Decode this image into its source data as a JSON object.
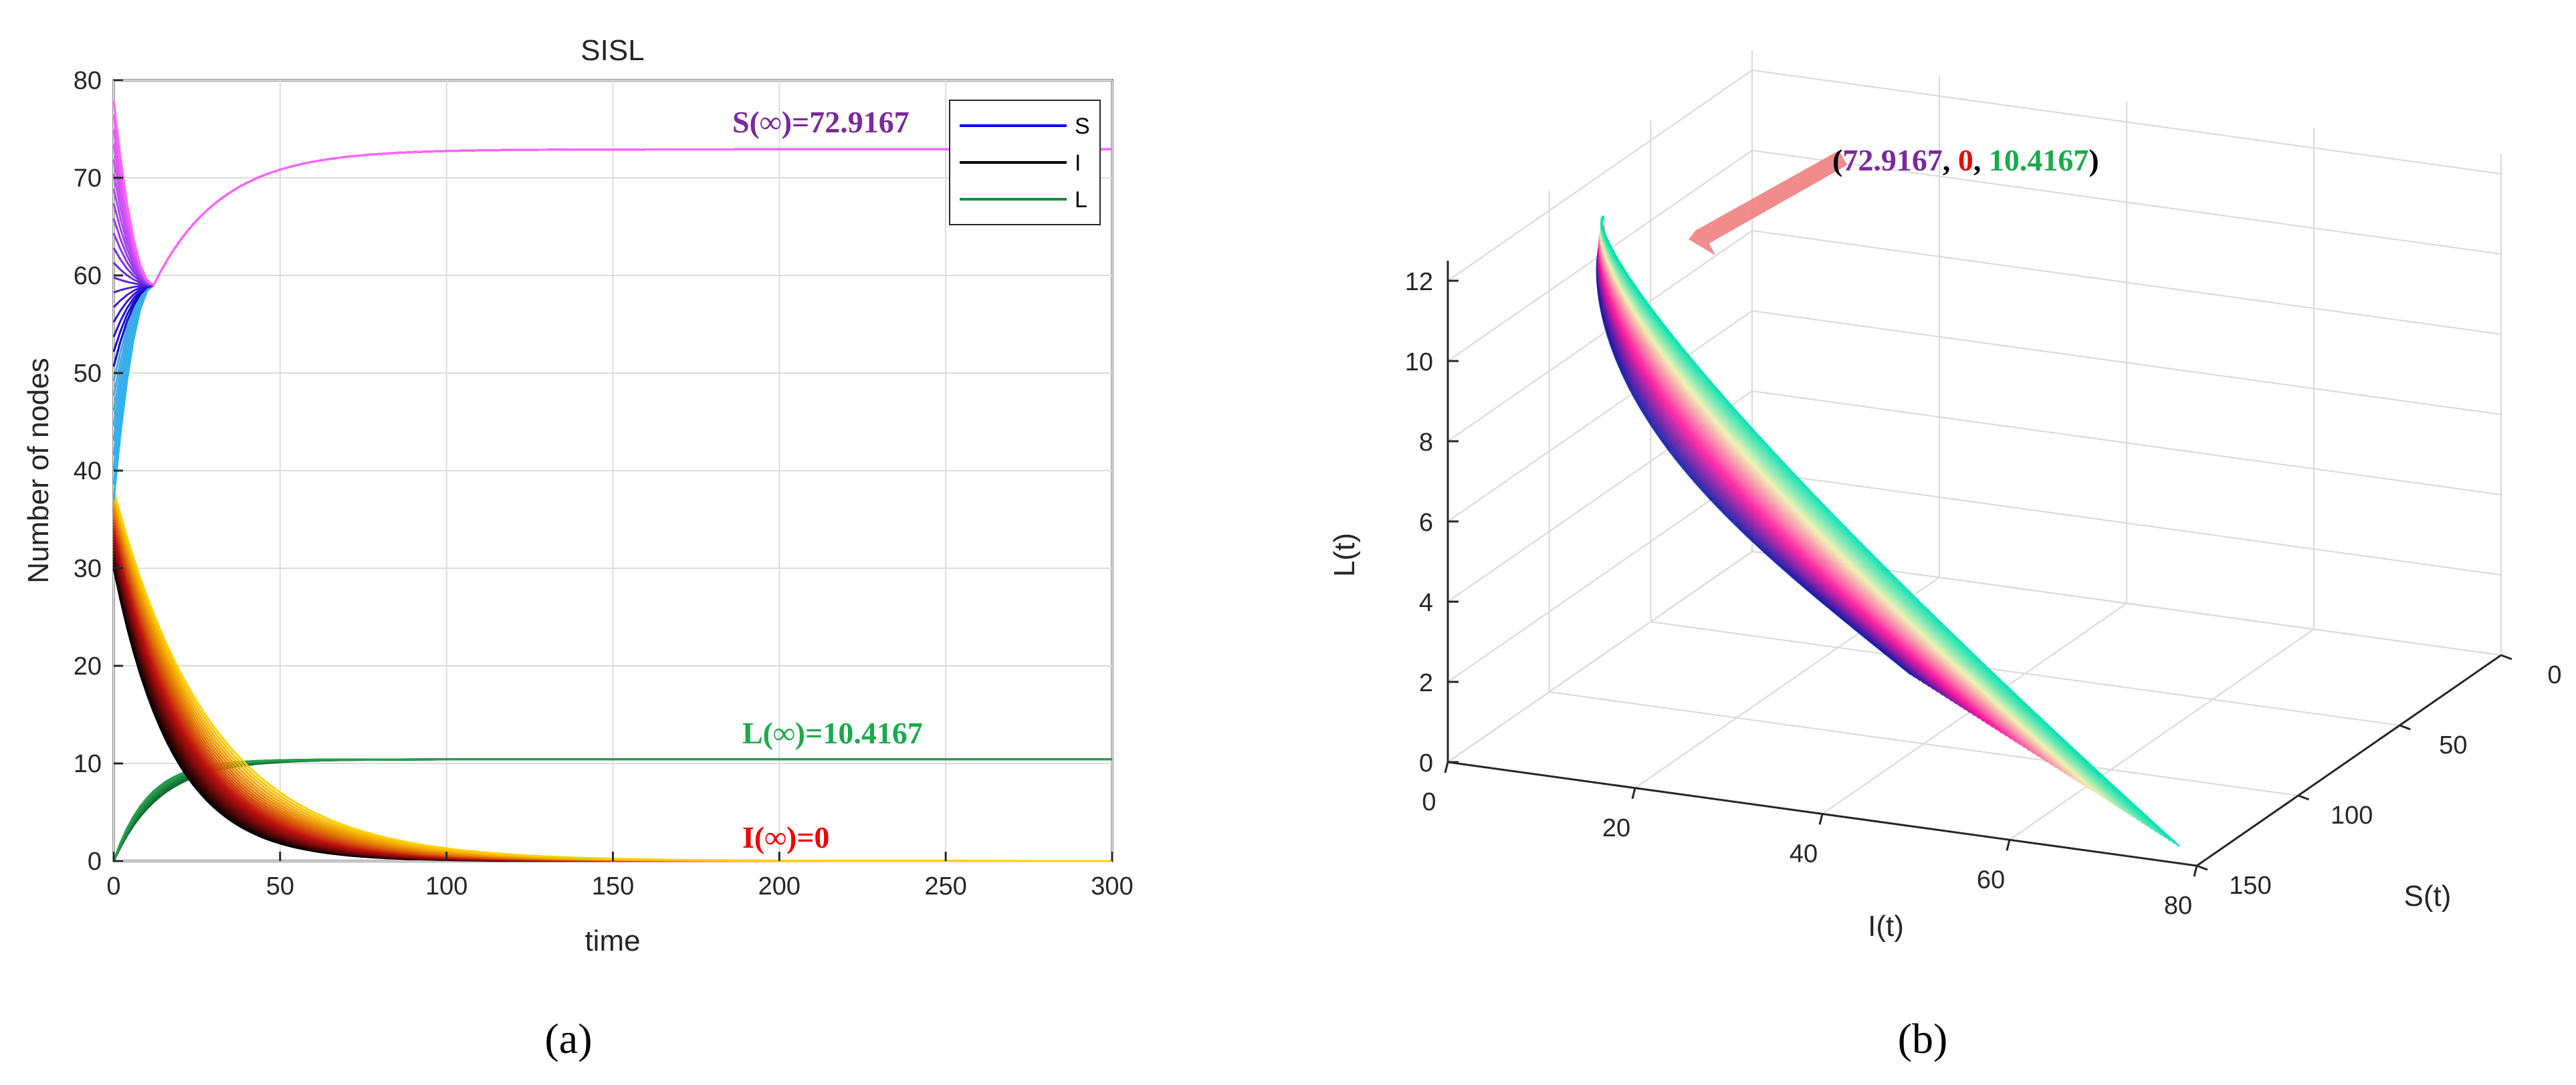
{
  "chart_data": [
    {
      "type": "line",
      "panel": "(a)",
      "title": "SISL",
      "xlabel": "time",
      "ylabel": "Number of nodes",
      "xlim": [
        0,
        300
      ],
      "ylim": [
        0,
        80
      ],
      "xticks": [
        "0",
        "50",
        "100",
        "150",
        "200",
        "250",
        "300"
      ],
      "yticks": [
        "0",
        "10",
        "20",
        "30",
        "40",
        "50",
        "60",
        "70",
        "80"
      ],
      "grid": true,
      "legend": {
        "placement": "top-right",
        "entries": [
          {
            "name": "S",
            "color": "#0000ff"
          },
          {
            "name": "I",
            "color": "#000000"
          },
          {
            "name": "L",
            "color": "#1a8a3c"
          }
        ]
      },
      "series": [
        {
          "name": "S",
          "final": 72.9167,
          "initial_range": [
            37,
            78
          ],
          "min_dip_t": 12,
          "color_range": [
            "#0000cc",
            "#ff66ff"
          ],
          "low_start_color": "#2ab6f0"
        },
        {
          "name": "I",
          "final": 0,
          "initial_range": [
            30,
            38
          ],
          "decay_rate": 0.045,
          "color_range": [
            "#000000",
            "#ffd000"
          ]
        },
        {
          "name": "L",
          "final": 10.4167,
          "initial": 0,
          "rise_rate": 0.085,
          "color": "#1a7a3a"
        }
      ],
      "annotations": [
        {
          "text": "S(∞)=72.9167",
          "color": "#7a2a9a"
        },
        {
          "text": "L(∞)=10.4167",
          "color": "#1aaa4a"
        },
        {
          "text": "I(∞)=0",
          "color": "#ee0000"
        }
      ]
    },
    {
      "type": "line3d",
      "panel": "(b)",
      "xlabel": "I(t)",
      "ylabel": "S(t)",
      "zlabel": "L(t)",
      "xlim": [
        0,
        80
      ],
      "ylim": [
        0,
        150
      ],
      "zlim": [
        0,
        12
      ],
      "xticks": [
        "0",
        "20",
        "40",
        "60",
        "80"
      ],
      "yticks": [
        "0",
        "50",
        "100",
        "150"
      ],
      "zticks": [
        "0",
        "2",
        "4",
        "6",
        "8",
        "10",
        "12"
      ],
      "grid": true,
      "equilibrium": {
        "S": 72.9167,
        "I": 0,
        "L": 10.4167
      },
      "annotation": {
        "parts": [
          {
            "text": "(",
            "color": "#000000"
          },
          {
            "text": "72.9167",
            "color": "#7a2a9a"
          },
          {
            "text": ", ",
            "color": "#000000"
          },
          {
            "text": "0",
            "color": "#ee0000"
          },
          {
            "text": ", ",
            "color": "#000000"
          },
          {
            "text": "10.4167",
            "color": "#1aaa4a"
          },
          {
            "text": ")",
            "color": "#000000"
          }
        ],
        "arrow_color": "#f08080"
      },
      "colors": [
        "#0a1aa8",
        "#ff1aa0",
        "#f0f0b0",
        "#00e0b0"
      ]
    }
  ],
  "captions": [
    "(a)",
    "(b)"
  ]
}
